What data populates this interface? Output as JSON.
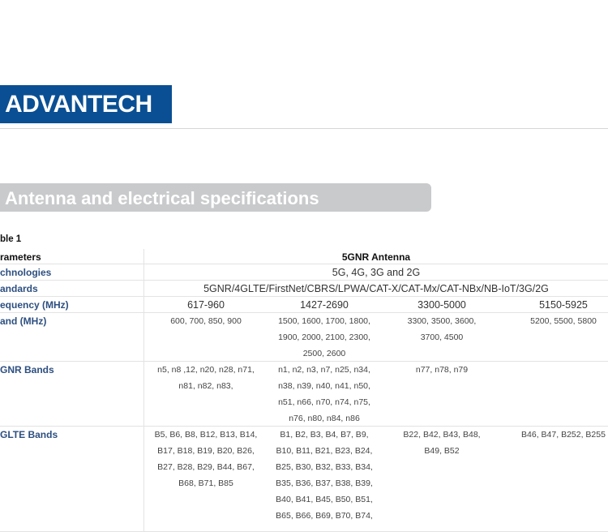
{
  "logo": "ADVANTECH",
  "section_title": "Antenna and electrical specifications",
  "table": {
    "caption": "ble 1",
    "rows": [
      {
        "label": "rameters",
        "cells": [
          [
            "5GNR Antenna"
          ]
        ]
      },
      {
        "label": "chnologies",
        "cells": [
          [
            "5G, 4G, 3G and 2G"
          ]
        ]
      },
      {
        "label": "andards",
        "cells": [
          [
            "5GNR/4GLTE/FirstNet/CBRS/LPWA/CAT-X/CAT-Mx/CAT-NBx/NB-IoT/3G/2G"
          ]
        ]
      },
      {
        "label": "equency (MHz)",
        "cells": [
          [
            "617-960"
          ],
          [
            "1427-2690"
          ],
          [
            "3300-5000"
          ],
          [
            "5150-5925"
          ]
        ]
      },
      {
        "label": "and (MHz)",
        "cells": [
          [
            "600, 700, 850, 900"
          ],
          [
            "1500, 1600, 1700, 1800,",
            "1900, 2000, 2100, 2300,",
            "2500, 2600"
          ],
          [
            "3300, 3500, 3600,",
            "3700, 4500"
          ],
          [
            "5200, 5500, 5800"
          ]
        ]
      },
      {
        "label": "GNR Bands",
        "cells": [
          [
            "n5, n8 ,12, n20, n28, n71,",
            "n81, n82, n83,"
          ],
          [
            "n1, n2, n3, n7, n25, n34,",
            "n38, n39, n40, n41, n50,",
            "n51, n66, n70, n74, n75,",
            "n76, n80, n84, n86"
          ],
          [
            "n77, n78, n79"
          ],
          []
        ]
      },
      {
        "label": "GLTE Bands",
        "cells": [
          [
            "B5, B6, B8, B12, B13, B14,",
            "B17, B18, B19, B20, B26,",
            "B27, B28, B29, B44, B67,",
            "B68, B71, B85"
          ],
          [
            "B1, B2, B3, B4, B7, B9,",
            "B10, B11, B21, B23, B24,",
            "B25, B30, B32, B33, B34,",
            "B35, B36, B37, B38, B39,",
            "B40, B41, B45, B50, B51,",
            "B65, B66, B69, B70, B74,"
          ],
          [
            "B22, B42, B43, B48,",
            "B49, B52"
          ],
          [
            "B46, B47, B252, B255"
          ]
        ]
      }
    ]
  }
}
